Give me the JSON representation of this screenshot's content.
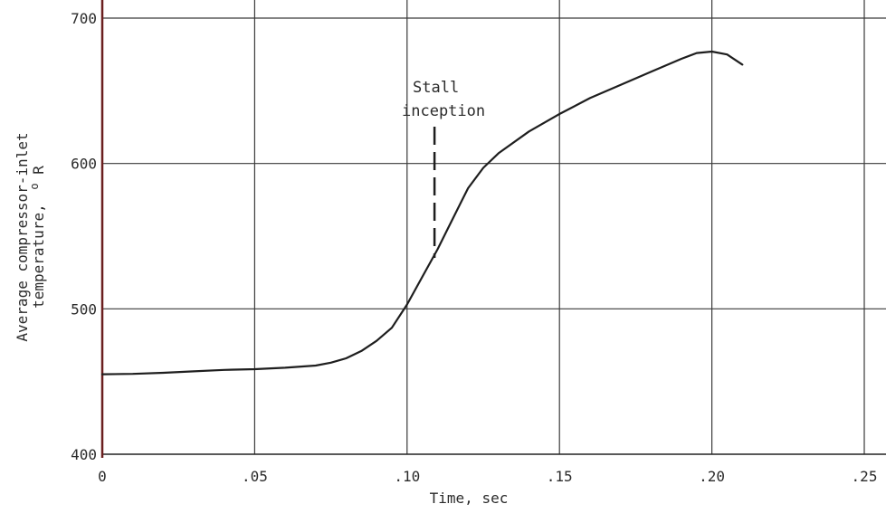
{
  "chart_data": {
    "type": "line",
    "xlabel": "Time, sec",
    "ylabel_line1": "Average compressor-inlet",
    "ylabel_line2": "temperature,",
    "ylabel_unit_sup": "o",
    "ylabel_unit": "R",
    "xlim": [
      0,
      0.25
    ],
    "ylim": [
      400,
      700
    ],
    "xticks": [
      0,
      0.05,
      0.1,
      0.15,
      0.2,
      0.25
    ],
    "xtick_labels": [
      "0",
      ".05",
      ".10",
      ".15",
      ".20",
      ".25"
    ],
    "yticks": [
      400,
      500,
      600,
      700
    ],
    "ytick_labels": [
      "400",
      "500",
      "600",
      "700"
    ],
    "grid": true,
    "series": [
      {
        "x": [
          0,
          0.01,
          0.02,
          0.03,
          0.04,
          0.05,
          0.06,
          0.07,
          0.075,
          0.08,
          0.085,
          0.09,
          0.095,
          0.1,
          0.105,
          0.11,
          0.115,
          0.12,
          0.125,
          0.13,
          0.14,
          0.15,
          0.16,
          0.17,
          0.18,
          0.19,
          0.195,
          0.2,
          0.205,
          0.21
        ],
        "y": [
          455,
          455.3,
          456,
          457,
          458,
          458.5,
          459.5,
          461,
          463,
          466,
          471,
          478,
          487,
          503,
          522,
          541,
          562,
          583,
          597,
          607,
          622,
          634,
          645,
          654,
          663,
          672,
          676,
          677,
          675,
          668
        ]
      }
    ],
    "annotations": [
      {
        "text_line1": "Stall",
        "text_line2": "inception",
        "x": 0.109
      }
    ],
    "colors": {
      "line": "#1e1e1e",
      "grid": "#3a3a3a",
      "left_axis": "#6b1f1f"
    }
  }
}
